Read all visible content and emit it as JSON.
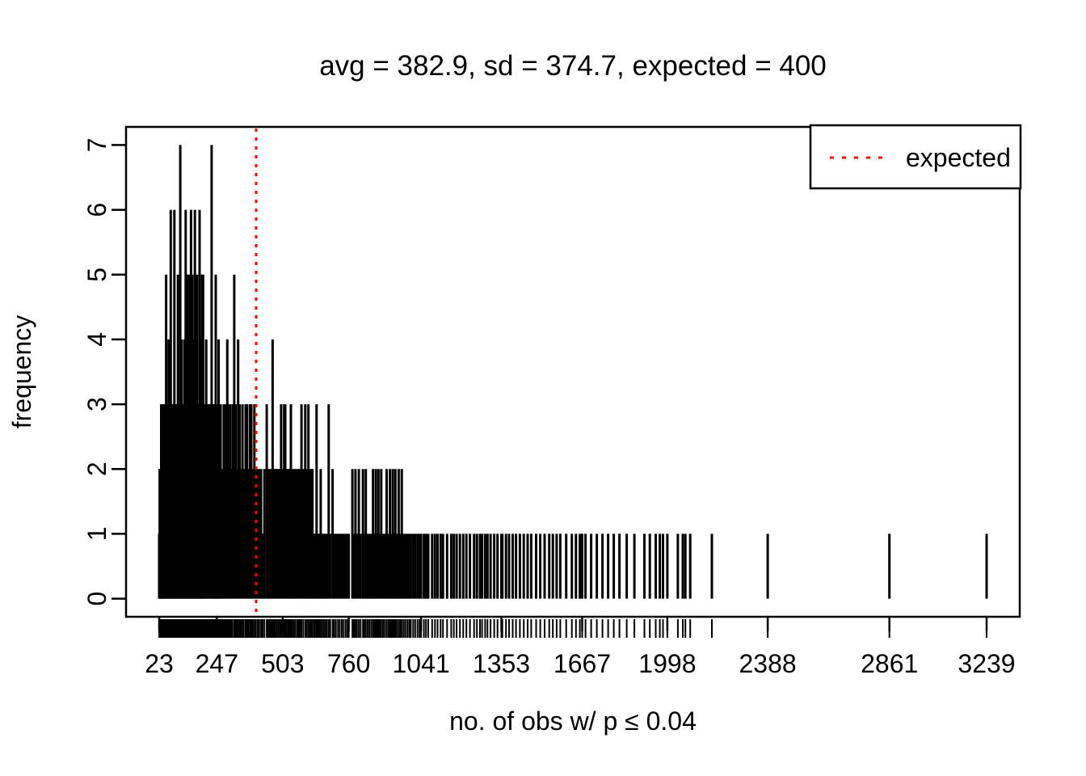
{
  "figure": {
    "background": "#FFFFFF"
  },
  "chart_data": {
    "type": "bar",
    "style": "needle-histogram (R plot type='h') with rug marks under the x-axis",
    "title": "avg = 382.9, sd = 374.7, expected = 400",
    "xlabel": "no. of obs w/ p ≤ 0.04",
    "ylabel": "frequency",
    "stats": {
      "avg": 382.9,
      "sd": 374.7,
      "expected": 400
    },
    "xlim": [
      23,
      3239
    ],
    "ylim": [
      0,
      7
    ],
    "axis_padding_frac": 0.04,
    "x_ticks": [
      23,
      247,
      503,
      760,
      1041,
      1353,
      1667,
      1998,
      2388,
      2861,
      3239
    ],
    "y_ticks": [
      0,
      1,
      2,
      3,
      4,
      5,
      6,
      7
    ],
    "grid": "off",
    "expected_line": {
      "value": 400,
      "color": "#FF0000",
      "style": "dotted"
    },
    "legend": {
      "label": "expected",
      "position": "top-right",
      "line_color": "#FF0000",
      "line_style": "dotted"
    },
    "rug": true,
    "colors": {
      "spike": "#000000",
      "axis": "#000000",
      "background": "#FFFFFF",
      "accent": "#FF0000"
    },
    "spikes": [
      [
        23,
        1
      ],
      [
        25,
        2
      ],
      [
        28,
        2
      ],
      [
        31,
        3
      ],
      [
        34,
        2
      ],
      [
        37,
        3
      ],
      [
        40,
        3
      ],
      [
        43,
        3
      ],
      [
        46,
        3
      ],
      [
        50,
        5
      ],
      [
        53,
        3
      ],
      [
        56,
        3
      ],
      [
        60,
        4
      ],
      [
        63,
        3
      ],
      [
        65,
        2
      ],
      [
        68,
        6
      ],
      [
        71,
        3
      ],
      [
        74,
        3
      ],
      [
        78,
        3
      ],
      [
        82,
        6
      ],
      [
        85,
        3
      ],
      [
        88,
        3
      ],
      [
        91,
        3
      ],
      [
        96,
        5
      ],
      [
        99,
        3
      ],
      [
        102,
        3
      ],
      [
        105,
        7
      ],
      [
        108,
        3
      ],
      [
        111,
        4
      ],
      [
        115,
        3
      ],
      [
        118,
        3
      ],
      [
        122,
        4
      ],
      [
        126,
        6
      ],
      [
        129,
        3
      ],
      [
        133,
        5
      ],
      [
        136,
        3
      ],
      [
        139,
        5
      ],
      [
        143,
        3
      ],
      [
        147,
        6
      ],
      [
        150,
        3
      ],
      [
        152,
        5
      ],
      [
        155,
        3
      ],
      [
        158,
        4
      ],
      [
        162,
        6
      ],
      [
        166,
        3
      ],
      [
        170,
        5
      ],
      [
        174,
        3
      ],
      [
        177,
        3
      ],
      [
        180,
        6
      ],
      [
        183,
        3
      ],
      [
        187,
        4
      ],
      [
        190,
        5
      ],
      [
        194,
        5
      ],
      [
        198,
        3
      ],
      [
        201,
        3
      ],
      [
        206,
        4
      ],
      [
        210,
        3
      ],
      [
        214,
        3
      ],
      [
        218,
        3
      ],
      [
        222,
        3
      ],
      [
        227,
        7
      ],
      [
        231,
        3
      ],
      [
        235,
        3
      ],
      [
        238,
        3
      ],
      [
        243,
        5
      ],
      [
        247,
        3
      ],
      [
        250,
        3
      ],
      [
        254,
        4
      ],
      [
        257,
        3
      ],
      [
        262,
        3
      ],
      [
        266,
        2
      ],
      [
        270,
        2
      ],
      [
        274,
        3
      ],
      [
        278,
        2
      ],
      [
        283,
        3
      ],
      [
        288,
        4
      ],
      [
        293,
        3
      ],
      [
        298,
        3
      ],
      [
        303,
        2
      ],
      [
        308,
        3
      ],
      [
        315,
        5
      ],
      [
        320,
        3
      ],
      [
        325,
        2
      ],
      [
        330,
        4
      ],
      [
        336,
        3
      ],
      [
        341,
        2
      ],
      [
        347,
        3
      ],
      [
        352,
        2
      ],
      [
        359,
        3
      ],
      [
        364,
        3
      ],
      [
        369,
        2
      ],
      [
        375,
        3
      ],
      [
        381,
        3
      ],
      [
        387,
        2
      ],
      [
        393,
        3
      ],
      [
        399,
        2
      ],
      [
        406,
        2
      ],
      [
        412,
        2
      ],
      [
        419,
        2
      ],
      [
        425,
        1
      ],
      [
        432,
        2
      ],
      [
        441,
        3
      ],
      [
        446,
        2
      ],
      [
        452,
        2
      ],
      [
        458,
        2
      ],
      [
        464,
        4
      ],
      [
        469,
        2
      ],
      [
        475,
        2
      ],
      [
        481,
        2
      ],
      [
        487,
        2
      ],
      [
        493,
        2
      ],
      [
        497,
        3
      ],
      [
        503,
        2
      ],
      [
        509,
        3
      ],
      [
        513,
        3
      ],
      [
        519,
        2
      ],
      [
        525,
        2
      ],
      [
        530,
        2
      ],
      [
        535,
        3
      ],
      [
        541,
        2
      ],
      [
        547,
        2
      ],
      [
        553,
        2
      ],
      [
        560,
        2
      ],
      [
        566,
        2
      ],
      [
        571,
        2
      ],
      [
        576,
        3
      ],
      [
        583,
        2
      ],
      [
        591,
        3
      ],
      [
        597,
        2
      ],
      [
        603,
        3
      ],
      [
        609,
        2
      ],
      [
        615,
        2
      ],
      [
        619,
        2
      ],
      [
        625,
        1
      ],
      [
        629,
        1
      ],
      [
        635,
        3
      ],
      [
        640,
        1
      ],
      [
        645,
        1
      ],
      [
        651,
        2
      ],
      [
        657,
        1
      ],
      [
        663,
        1
      ],
      [
        669,
        1
      ],
      [
        675,
        1
      ],
      [
        682,
        3
      ],
      [
        688,
        1
      ],
      [
        697,
        2
      ],
      [
        703,
        1
      ],
      [
        710,
        1
      ],
      [
        718,
        1
      ],
      [
        725,
        1
      ],
      [
        733,
        1
      ],
      [
        740,
        1
      ],
      [
        748,
        1
      ],
      [
        755,
        1
      ],
      [
        760,
        1
      ],
      [
        774,
        2
      ],
      [
        780,
        1
      ],
      [
        786,
        2
      ],
      [
        792,
        1
      ],
      [
        799,
        2
      ],
      [
        806,
        1
      ],
      [
        815,
        2
      ],
      [
        820,
        1
      ],
      [
        826,
        2
      ],
      [
        833,
        1
      ],
      [
        840,
        1
      ],
      [
        847,
        1
      ],
      [
        854,
        2
      ],
      [
        860,
        1
      ],
      [
        865,
        2
      ],
      [
        871,
        1
      ],
      [
        875,
        2
      ],
      [
        880,
        1
      ],
      [
        886,
        2
      ],
      [
        893,
        1
      ],
      [
        900,
        1
      ],
      [
        907,
        2
      ],
      [
        914,
        1
      ],
      [
        920,
        2
      ],
      [
        926,
        1
      ],
      [
        931,
        2
      ],
      [
        936,
        1
      ],
      [
        941,
        2
      ],
      [
        947,
        1
      ],
      [
        954,
        2
      ],
      [
        960,
        1
      ],
      [
        966,
        2
      ],
      [
        973,
        1
      ],
      [
        980,
        1
      ],
      [
        988,
        1
      ],
      [
        995,
        1
      ],
      [
        1001,
        1
      ],
      [
        1010,
        1
      ],
      [
        1018,
        1
      ],
      [
        1027,
        1
      ],
      [
        1035,
        1
      ],
      [
        1041,
        1
      ],
      [
        1052,
        1
      ],
      [
        1060,
        1
      ],
      [
        1069,
        1
      ],
      [
        1084,
        1
      ],
      [
        1095,
        1
      ],
      [
        1105,
        1
      ],
      [
        1117,
        1
      ],
      [
        1126,
        1
      ],
      [
        1142,
        1
      ],
      [
        1158,
        1
      ],
      [
        1168,
        1
      ],
      [
        1179,
        1
      ],
      [
        1192,
        1
      ],
      [
        1205,
        1
      ],
      [
        1217,
        1
      ],
      [
        1231,
        1
      ],
      [
        1247,
        1
      ],
      [
        1258,
        1
      ],
      [
        1270,
        1
      ],
      [
        1278,
        1
      ],
      [
        1290,
        1
      ],
      [
        1299,
        1
      ],
      [
        1311,
        1
      ],
      [
        1325,
        1
      ],
      [
        1338,
        1
      ],
      [
        1353,
        1
      ],
      [
        1357,
        1
      ],
      [
        1371,
        1
      ],
      [
        1383,
        1
      ],
      [
        1397,
        1
      ],
      [
        1410,
        1
      ],
      [
        1425,
        1
      ],
      [
        1440,
        1
      ],
      [
        1455,
        1
      ],
      [
        1469,
        1
      ],
      [
        1488,
        1
      ],
      [
        1504,
        1
      ],
      [
        1521,
        1
      ],
      [
        1539,
        1
      ],
      [
        1553,
        1
      ],
      [
        1568,
        1
      ],
      [
        1582,
        1
      ],
      [
        1605,
        1
      ],
      [
        1627,
        1
      ],
      [
        1643,
        1
      ],
      [
        1658,
        1
      ],
      [
        1667,
        1
      ],
      [
        1680,
        1
      ],
      [
        1702,
        1
      ],
      [
        1724,
        1
      ],
      [
        1746,
        1
      ],
      [
        1768,
        1
      ],
      [
        1790,
        1
      ],
      [
        1812,
        1
      ],
      [
        1840,
        1
      ],
      [
        1870,
        1
      ],
      [
        1909,
        1
      ],
      [
        1930,
        1
      ],
      [
        1953,
        1
      ],
      [
        1969,
        1
      ],
      [
        1981,
        1
      ],
      [
        1998,
        1
      ],
      [
        2039,
        1
      ],
      [
        2058,
        1
      ],
      [
        2068,
        1
      ],
      [
        2087,
        1
      ],
      [
        2171,
        1
      ],
      [
        2388,
        1
      ],
      [
        2861,
        1
      ],
      [
        3239,
        1
      ]
    ]
  }
}
